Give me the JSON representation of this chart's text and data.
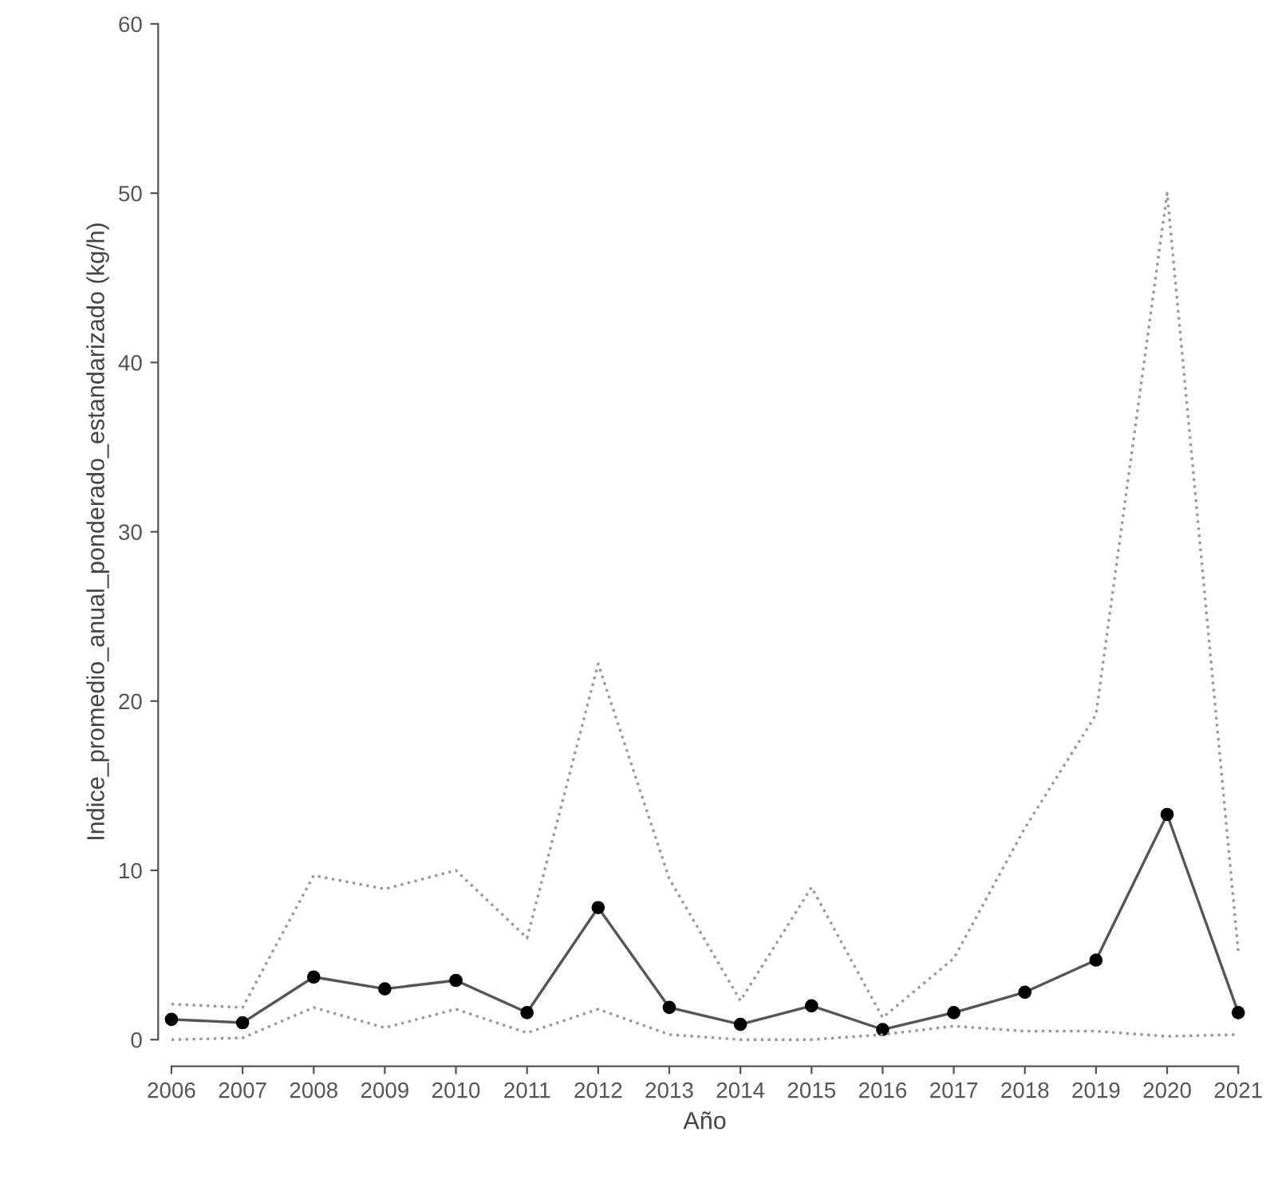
{
  "chart_data": {
    "type": "line",
    "xlabel": "Año",
    "ylabel": "Indice_promedio_anual_ponderado_estandarizado (kg/h)",
    "x": [
      2006,
      2007,
      2008,
      2009,
      2010,
      2011,
      2012,
      2013,
      2014,
      2015,
      2016,
      2017,
      2018,
      2019,
      2020,
      2021
    ],
    "series": [
      {
        "color": "#555555",
        "marker": "circle",
        "line_style": "solid",
        "values": [
          1.2,
          1.0,
          3.7,
          3.0,
          3.5,
          1.6,
          7.8,
          1.9,
          0.9,
          2.0,
          0.6,
          1.6,
          2.8,
          4.7,
          13.3,
          1.6
        ]
      },
      {
        "color": "#999999",
        "marker": "none",
        "line_style": "dotted",
        "values": [
          2.1,
          1.9,
          9.7,
          8.9,
          10.0,
          6.0,
          22.2,
          9.5,
          2.3,
          9.0,
          1.3,
          4.8,
          12.5,
          19.2,
          50.0,
          5.2
        ]
      },
      {
        "color": "#999999",
        "marker": "none",
        "line_style": "dotted",
        "values": [
          0.0,
          0.1,
          1.9,
          0.7,
          1.8,
          0.4,
          1.8,
          0.3,
          0.0,
          0.0,
          0.3,
          0.8,
          0.5,
          0.5,
          0.2,
          0.3
        ]
      }
    ],
    "xlim": [
      2006,
      2021
    ],
    "ylim": [
      0,
      60
    ],
    "xticks": [
      2006,
      2007,
      2008,
      2009,
      2010,
      2011,
      2012,
      2013,
      2014,
      2015,
      2016,
      2017,
      2018,
      2019,
      2020,
      2021
    ],
    "yticks": [
      0,
      10,
      20,
      30,
      40,
      50,
      60
    ],
    "grid": false,
    "legend": false
  }
}
